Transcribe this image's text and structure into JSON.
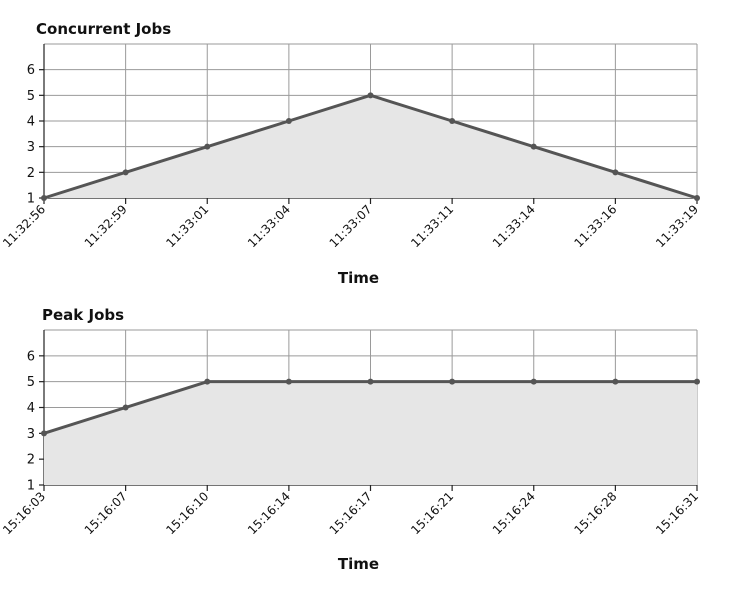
{
  "colors": {
    "line": "#555555",
    "area": "#e6e6e6",
    "grid": "#9a9a9a"
  },
  "chart_data": [
    {
      "type": "area",
      "title": "Concurrent Jobs",
      "xlabel": "Time",
      "ylabel": "",
      "ylim": [
        1,
        7
      ],
      "yticks": [
        1,
        2,
        3,
        4,
        5,
        6
      ],
      "grid": true,
      "x": [
        "11:32:56",
        "11:32:59",
        "11:33:01",
        "11:33:04",
        "11:33:07",
        "11:33:11",
        "11:33:14",
        "11:33:16",
        "11:33:19"
      ],
      "series": [
        {
          "values": [
            1,
            2,
            3,
            4,
            5,
            4,
            3,
            2,
            1
          ]
        }
      ]
    },
    {
      "type": "area",
      "title": "Peak Jobs",
      "xlabel": "Time",
      "ylabel": "",
      "ylim": [
        1,
        7
      ],
      "yticks": [
        1,
        2,
        3,
        4,
        5,
        6
      ],
      "grid": true,
      "x": [
        "15:16:03",
        "15:16:07",
        "15:16:10",
        "15:16:14",
        "15:16:17",
        "15:16:21",
        "15:16:24",
        "15:16:28",
        "15:16:31"
      ],
      "series": [
        {
          "values": [
            3,
            4,
            5,
            5,
            5,
            5,
            5,
            5,
            5
          ]
        }
      ]
    }
  ]
}
